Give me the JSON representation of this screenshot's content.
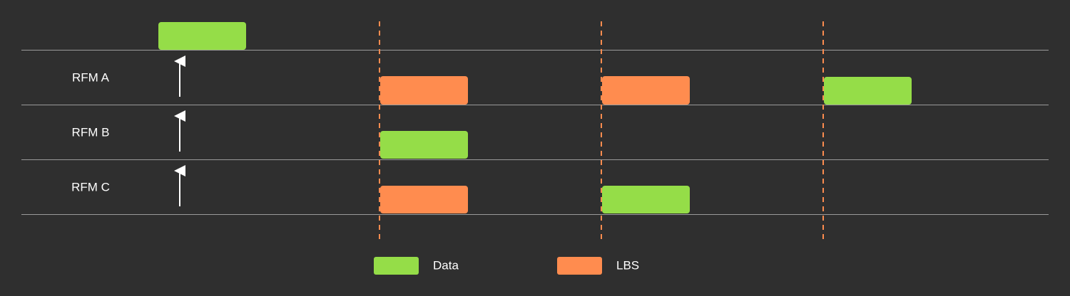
{
  "rows": [
    {
      "label": "RFM A"
    },
    {
      "label": "RFM B"
    },
    {
      "label": "RFM C"
    }
  ],
  "legend": [
    {
      "label": "Data"
    },
    {
      "label": "LBS"
    }
  ]
}
